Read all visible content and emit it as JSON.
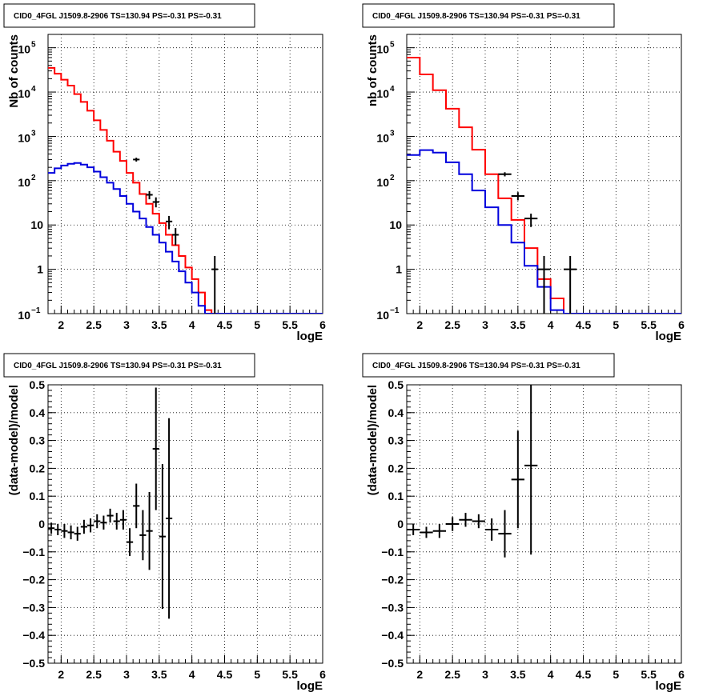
{
  "chart_data": [
    {
      "type": "histogram-log",
      "title": "CID0_4FGL J1509.8-2906 TS=130.94 PS=-0.31 PS=-0.31",
      "xlabel": "logE",
      "ylabel": "Nb of counts",
      "xlim": [
        1.8,
        6.0
      ],
      "ylim": [
        0.1,
        200000
      ],
      "log_y": true,
      "grid": true,
      "x_ticks": [
        "2",
        "2.5",
        "3",
        "3.5",
        "4",
        "4.5",
        "5",
        "5.5",
        "6"
      ],
      "y_ticks": [
        {
          "value": 0.1,
          "base": "10",
          "exp": "−1"
        },
        {
          "value": 1,
          "label": "1"
        },
        {
          "value": 10,
          "label": "10"
        },
        {
          "value": 100,
          "base": "10",
          "exp": "2"
        },
        {
          "value": 1000,
          "base": "10",
          "exp": "3"
        },
        {
          "value": 10000,
          "base": "10",
          "exp": "4"
        },
        {
          "value": 100000,
          "base": "10",
          "exp": "5"
        }
      ],
      "bin_edges": [
        1.8,
        1.9,
        2.0,
        2.1,
        2.2,
        2.3,
        2.4,
        2.5,
        2.6,
        2.7,
        2.8,
        2.9,
        3.0,
        3.1,
        3.2,
        3.3,
        3.4,
        3.5,
        3.6,
        3.7,
        3.8,
        3.9,
        4.0,
        4.1,
        4.2,
        4.3,
        4.4,
        4.5,
        4.6,
        4.7,
        4.8,
        4.9,
        5.0,
        5.1,
        5.2,
        5.3,
        5.4,
        5.5,
        5.6,
        5.7,
        5.8,
        5.9,
        6.0
      ],
      "series": [
        {
          "name": "",
          "color": "#ff0000",
          "values": [
            35000,
            26000,
            19000,
            14000,
            9000,
            6000,
            3800,
            2300,
            1400,
            800,
            450,
            280,
            150,
            90,
            50,
            30,
            18,
            11,
            6,
            3.5,
            2,
            1.1,
            0.6,
            0.3,
            0.12,
            0.1,
            0.1,
            0.1,
            0.1,
            0.1,
            0.1,
            0.1,
            0.1,
            0.1,
            0.1,
            0.1,
            0.1,
            0.1,
            0.1,
            0.1,
            0.1,
            0.1
          ]
        },
        {
          "name": "",
          "color": "#0000dd",
          "values": [
            150,
            190,
            220,
            240,
            250,
            230,
            200,
            160,
            120,
            90,
            65,
            45,
            30,
            20,
            14,
            9,
            6,
            4,
            2.5,
            1.5,
            0.9,
            0.5,
            0.3,
            0.15,
            0.1,
            0.1,
            0.1,
            0.1,
            0.1,
            0.1,
            0.1,
            0.1,
            0.1,
            0.1,
            0.1,
            0.1,
            0.1,
            0.1,
            0.1,
            0.1,
            0.1,
            0.1
          ]
        }
      ],
      "data_points": [
        {
          "x": 3.15,
          "y": 300,
          "xerr": 0.05,
          "ylo": 270,
          "yhi": 330
        },
        {
          "x": 3.35,
          "y": 48,
          "xerr": 0.05,
          "ylo": 38,
          "yhi": 58
        },
        {
          "x": 3.45,
          "y": 33,
          "xerr": 0.05,
          "ylo": 25,
          "yhi": 42
        },
        {
          "x": 3.65,
          "y": 12,
          "xerr": 0.05,
          "ylo": 8,
          "yhi": 16
        },
        {
          "x": 3.75,
          "y": 6,
          "xerr": 0.05,
          "ylo": 3.5,
          "yhi": 8.5
        },
        {
          "x": 4.35,
          "y": 1,
          "xerr": 0.05,
          "ylo": 0.1,
          "yhi": 2
        }
      ]
    },
    {
      "type": "histogram-log",
      "title": "CID0_4FGL J1509.8-2906 TS=130.94 PS=-0.31 PS=-0.31",
      "xlabel": "logE",
      "ylabel": "nb of counts",
      "xlim": [
        1.8,
        6.0
      ],
      "ylim": [
        0.1,
        200000
      ],
      "log_y": true,
      "grid": true,
      "x_ticks": [
        "2",
        "2.5",
        "3",
        "3.5",
        "4",
        "4.5",
        "5",
        "5.5",
        "6"
      ],
      "y_ticks": [
        {
          "value": 0.1,
          "base": "10",
          "exp": "−1"
        },
        {
          "value": 1,
          "label": "1"
        },
        {
          "value": 10,
          "label": "10"
        },
        {
          "value": 100,
          "base": "10",
          "exp": "2"
        },
        {
          "value": 1000,
          "base": "10",
          "exp": "3"
        },
        {
          "value": 10000,
          "base": "10",
          "exp": "4"
        },
        {
          "value": 100000,
          "base": "10",
          "exp": "5"
        }
      ],
      "bin_edges": [
        1.8,
        2.0,
        2.2,
        2.4,
        2.6,
        2.8,
        3.0,
        3.2,
        3.4,
        3.6,
        3.8,
        4.0,
        4.2,
        4.4,
        4.6,
        4.8,
        5.0,
        5.2,
        5.4,
        5.6,
        5.8,
        6.0
      ],
      "series": [
        {
          "name": "",
          "color": "#ff0000",
          "values": [
            60000,
            25000,
            11000,
            4200,
            1600,
            500,
            140,
            40,
            13,
            3,
            0.6,
            0.22,
            0.1,
            0.1,
            0.1,
            0.1,
            0.1,
            0.1,
            0.1,
            0.1,
            0.1
          ]
        },
        {
          "name": "",
          "color": "#0000dd",
          "values": [
            380,
            490,
            430,
            260,
            140,
            60,
            25,
            10,
            4,
            1.2,
            0.4,
            0.12,
            0.1,
            0.1,
            0.1,
            0.1,
            0.1,
            0.1,
            0.1,
            0.1,
            0.1
          ]
        }
      ],
      "data_points": [
        {
          "x": 3.3,
          "y": 140,
          "xerr": 0.1,
          "ylo": 125,
          "yhi": 155
        },
        {
          "x": 3.5,
          "y": 45,
          "xerr": 0.1,
          "ylo": 36,
          "yhi": 55
        },
        {
          "x": 3.7,
          "y": 14,
          "xerr": 0.1,
          "ylo": 9,
          "yhi": 18
        },
        {
          "x": 3.9,
          "y": 1,
          "xerr": 0.1,
          "ylo": 0.1,
          "yhi": 2
        },
        {
          "x": 4.3,
          "y": 1,
          "xerr": 0.1,
          "ylo": 0.1,
          "yhi": 2
        }
      ]
    },
    {
      "type": "errorbar",
      "title": "CID0_4FGL J1509.8-2906 TS=130.94 PS=-0.31 PS=-0.31",
      "xlabel": "logE",
      "ylabel": "(data-model)/model",
      "xlim": [
        1.8,
        6.0
      ],
      "ylim": [
        -0.5,
        0.5
      ],
      "grid": true,
      "x_ticks": [
        "2",
        "2.5",
        "3",
        "3.5",
        "4",
        "4.5",
        "5",
        "5.5",
        "6"
      ],
      "y_ticks": [
        "−0.5",
        "−0.4",
        "−0.3",
        "−0.2",
        "−0.1",
        "0",
        "0.1",
        "0.2",
        "0.3",
        "0.4",
        "0.5"
      ],
      "points": [
        {
          "x": 1.85,
          "y": -0.015,
          "xerr": 0.05,
          "yerr": 0.02
        },
        {
          "x": 1.95,
          "y": -0.02,
          "xerr": 0.05,
          "yerr": 0.02
        },
        {
          "x": 2.05,
          "y": -0.025,
          "xerr": 0.05,
          "yerr": 0.025
        },
        {
          "x": 2.15,
          "y": -0.03,
          "xerr": 0.05,
          "yerr": 0.025
        },
        {
          "x": 2.25,
          "y": -0.035,
          "xerr": 0.05,
          "yerr": 0.025
        },
        {
          "x": 2.35,
          "y": -0.01,
          "xerr": 0.05,
          "yerr": 0.025
        },
        {
          "x": 2.45,
          "y": -0.005,
          "xerr": 0.05,
          "yerr": 0.025
        },
        {
          "x": 2.55,
          "y": 0.01,
          "xerr": 0.05,
          "yerr": 0.025
        },
        {
          "x": 2.65,
          "y": 0.005,
          "xerr": 0.05,
          "yerr": 0.025
        },
        {
          "x": 2.75,
          "y": 0.03,
          "xerr": 0.05,
          "yerr": 0.025
        },
        {
          "x": 2.85,
          "y": 0.01,
          "xerr": 0.05,
          "yerr": 0.03
        },
        {
          "x": 2.95,
          "y": 0.015,
          "xerr": 0.05,
          "yerr": 0.035
        },
        {
          "x": 3.05,
          "y": -0.065,
          "xerr": 0.05,
          "yerr": 0.05
        },
        {
          "x": 3.15,
          "y": 0.065,
          "xerr": 0.05,
          "yerr": 0.08
        },
        {
          "x": 3.25,
          "y": -0.04,
          "xerr": 0.05,
          "yerr": 0.09
        },
        {
          "x": 3.35,
          "y": -0.025,
          "xerr": 0.05,
          "yerr": 0.14
        },
        {
          "x": 3.45,
          "y": 0.27,
          "xerr": 0.05,
          "yerr": 0.22
        },
        {
          "x": 3.55,
          "y": -0.045,
          "xerr": 0.05,
          "yerr": 0.26
        },
        {
          "x": 3.65,
          "y": 0.02,
          "xerr": 0.05,
          "yerr": 0.36
        }
      ]
    },
    {
      "type": "errorbar",
      "title": "CID0_4FGL J1509.8-2906 TS=130.94 PS=-0.31 PS=-0.31",
      "xlabel": "logE",
      "ylabel": "(data-model)/model",
      "xlim": [
        1.8,
        6.0
      ],
      "ylim": [
        -0.5,
        0.5
      ],
      "grid": true,
      "x_ticks": [
        "2",
        "2.5",
        "3",
        "3.5",
        "4",
        "4.5",
        "5",
        "5.5",
        "6"
      ],
      "y_ticks": [
        "−0.5",
        "−0.4",
        "−0.3",
        "−0.2",
        "−0.1",
        "0",
        "0.1",
        "0.2",
        "0.3",
        "0.4",
        "0.5"
      ],
      "points": [
        {
          "x": 1.9,
          "y": -0.02,
          "xerr": 0.1,
          "yerr": 0.02
        },
        {
          "x": 2.1,
          "y": -0.03,
          "xerr": 0.1,
          "yerr": 0.02
        },
        {
          "x": 2.3,
          "y": -0.025,
          "xerr": 0.1,
          "yerr": 0.025
        },
        {
          "x": 2.5,
          "y": 0.0,
          "xerr": 0.1,
          "yerr": 0.025
        },
        {
          "x": 2.7,
          "y": 0.015,
          "xerr": 0.1,
          "yerr": 0.025
        },
        {
          "x": 2.9,
          "y": 0.01,
          "xerr": 0.1,
          "yerr": 0.025
        },
        {
          "x": 3.1,
          "y": -0.02,
          "xerr": 0.1,
          "yerr": 0.04
        },
        {
          "x": 3.3,
          "y": -0.035,
          "xerr": 0.1,
          "yerr": 0.085
        },
        {
          "x": 3.5,
          "y": 0.16,
          "xerr": 0.1,
          "yerr": 0.175
        },
        {
          "x": 3.7,
          "y": 0.21,
          "xerr": 0.1,
          "yerr": 0.32
        }
      ]
    }
  ]
}
